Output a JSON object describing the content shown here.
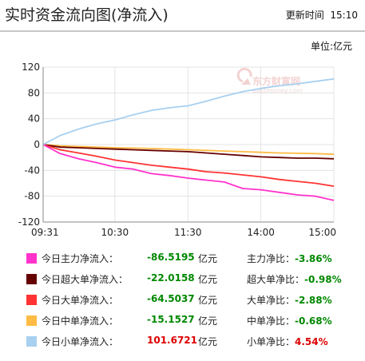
{
  "header": {
    "title": "实时资金流向图(净流入)",
    "update_label": "更新时间",
    "update_time": "15:10"
  },
  "unit_label": "单位:亿元",
  "watermark": {
    "name": "东方财富网",
    "domain": "eastmoney.com"
  },
  "chart_data": {
    "type": "line",
    "xlim": [
      "09:31",
      "15:00"
    ],
    "ylim": [
      -120,
      120
    ],
    "x_ticks": [
      "09:31",
      "10:30",
      "11:30",
      "14:00",
      "15:00"
    ],
    "y_ticks": [
      120,
      80,
      40,
      0,
      -40,
      -80,
      -120
    ],
    "grid": true,
    "series_x": [
      "09:31",
      "09:45",
      "10:00",
      "10:15",
      "10:30",
      "10:45",
      "11:00",
      "11:15",
      "11:30",
      "13:15",
      "13:30",
      "13:45",
      "14:00",
      "14:15",
      "14:30",
      "14:45",
      "15:00"
    ],
    "series": [
      {
        "color": "#ff33cc",
        "values": [
          0,
          -14,
          -22,
          -28,
          -35,
          -38,
          -45,
          -48,
          -52,
          -55,
          -58,
          -68,
          -70,
          -74,
          -78,
          -80,
          -86.52
        ]
      },
      {
        "color": "#660000",
        "values": [
          0,
          -4,
          -5,
          -6,
          -7,
          -8,
          -9,
          -10,
          -11,
          -13,
          -15,
          -17,
          -19,
          -20,
          -21,
          -21,
          -22.02
        ]
      },
      {
        "color": "#ff3333",
        "values": [
          0,
          -8,
          -13,
          -18,
          -24,
          -28,
          -32,
          -35,
          -38,
          -42,
          -44,
          -47,
          -50,
          -54,
          -57,
          -60,
          -64.5
        ]
      },
      {
        "color": "#ffbb44",
        "values": [
          0,
          -2,
          -3,
          -4,
          -5,
          -5.5,
          -6,
          -7,
          -8,
          -9,
          -10,
          -11,
          -12,
          -13,
          -13.5,
          -14,
          -15.15
        ]
      },
      {
        "color": "#a8d0f0",
        "values": [
          0,
          14,
          24,
          32,
          38,
          46,
          53,
          57,
          60,
          67,
          75,
          82,
          87,
          91,
          94,
          98,
          101.67
        ]
      }
    ]
  },
  "legend": [
    {
      "label": "今日主力净流入：",
      "value": "-86.5195",
      "value_color": "#008800",
      "unit": "亿元",
      "ratio_label": "主力净比：",
      "ratio_value": "-3.86%",
      "ratio_color": "#008800",
      "swatch_color": "#ff33cc"
    },
    {
      "label": "今日超大单净流入：",
      "value": "-22.0158",
      "value_color": "#008800",
      "unit": "亿元",
      "ratio_label": "超大单净比：",
      "ratio_value": "-0.98%",
      "ratio_color": "#008800",
      "swatch_color": "#660000"
    },
    {
      "label": "今日大单净流入：",
      "value": "-64.5037",
      "value_color": "#008800",
      "unit": "亿元",
      "ratio_label": "大单净比：",
      "ratio_value": "-2.88%",
      "ratio_color": "#008800",
      "swatch_color": "#ff3333"
    },
    {
      "label": "今日中单净流入：",
      "value": "-15.1527",
      "value_color": "#008800",
      "unit": "亿元",
      "ratio_label": "中单净比：",
      "ratio_value": "-0.68%",
      "ratio_color": "#008800",
      "swatch_color": "#ffbb44"
    },
    {
      "label": "今日小单净流入：",
      "value": "101.6721",
      "value_color": "#dd0000",
      "unit": "亿元",
      "ratio_label": "小单净比：",
      "ratio_value": "4.54%",
      "ratio_color": "#dd0000",
      "swatch_color": "#a8d0f0"
    }
  ]
}
